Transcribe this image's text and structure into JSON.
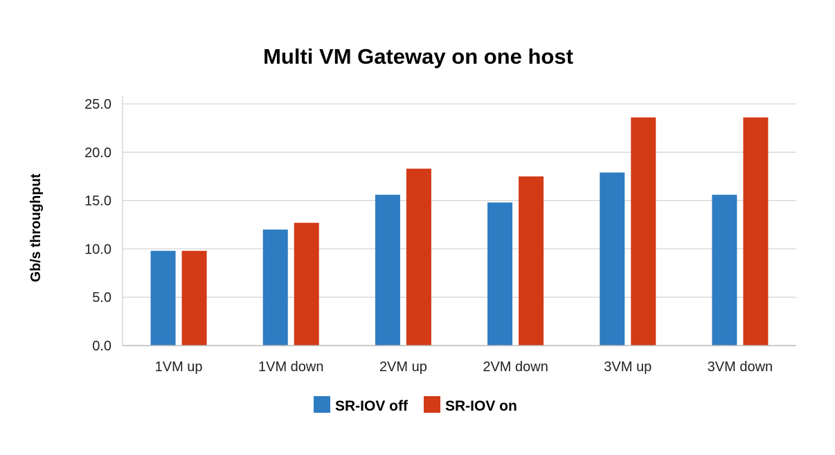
{
  "chart_data": {
    "type": "bar",
    "title": "Multi VM Gateway on one host",
    "xlabel": "",
    "ylabel": "Gb/s throughput",
    "categories": [
      "1VM up",
      "1VM down",
      "2VM up",
      "2VM down",
      "3VM up",
      "3VM down"
    ],
    "series": [
      {
        "name": "SR-IOV off",
        "color": "#2e7cc2",
        "values": [
          9.8,
          12.0,
          15.6,
          14.8,
          17.9,
          15.6
        ]
      },
      {
        "name": "SR-IOV on",
        "color": "#d33a16",
        "values": [
          9.8,
          12.7,
          18.3,
          17.5,
          23.6,
          23.6
        ]
      }
    ],
    "ylim": [
      0,
      25
    ],
    "yticks": [
      "0.0",
      "5.0",
      "10.0",
      "15.0",
      "20.0",
      "25.0"
    ],
    "grid": true,
    "legend_position": "bottom"
  }
}
